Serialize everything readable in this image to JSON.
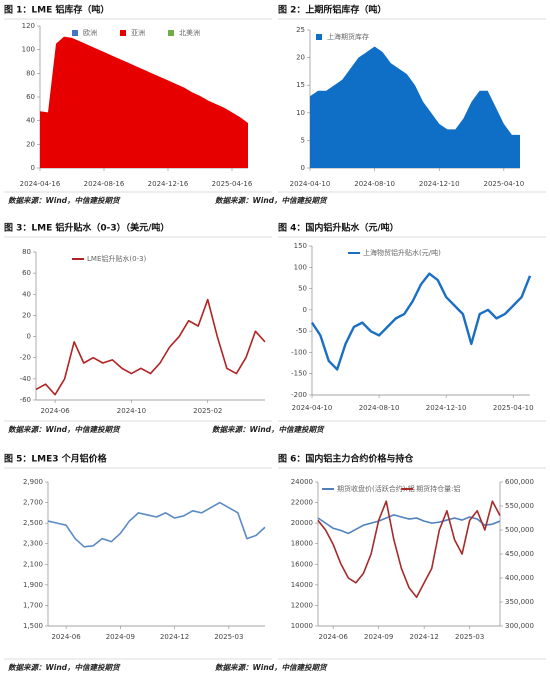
{
  "chart_data": [
    {
      "type": "area",
      "stacked": true,
      "title": "图 1：LME 铝库存（吨）",
      "source": "数据来源：Wind，中信建投期货",
      "categories": [
        "2024-04-16",
        null,
        null,
        null,
        null,
        null,
        null,
        null,
        "2024-08-16",
        null,
        null,
        null,
        null,
        null,
        null,
        null,
        "2024-12-16",
        null,
        null,
        null,
        null,
        null,
        null,
        null,
        "2025-04-16",
        null,
        null
      ],
      "series": [
        {
          "name": "欧洲",
          "color": "#4472c4",
          "values": [
            0,
            0,
            0,
            0,
            0,
            0,
            0,
            0,
            0,
            0,
            0,
            0,
            0,
            0,
            0,
            0,
            0,
            0,
            0,
            0,
            0,
            0,
            0,
            0,
            0,
            0,
            0
          ]
        },
        {
          "name": "亚洲",
          "color": "#e60000",
          "values": [
            48,
            47,
            105,
            111,
            110,
            107,
            104,
            101,
            98,
            95,
            92,
            89,
            86,
            83,
            80,
            77,
            74,
            71,
            68,
            64,
            61,
            57,
            54,
            51,
            47,
            43,
            38
          ]
        },
        {
          "name": "北美洲",
          "color": "#70ad47",
          "values": [
            0,
            0,
            0,
            0,
            0,
            0,
            0,
            0,
            0,
            0,
            0,
            0,
            0,
            0,
            0,
            0,
            0,
            0,
            0,
            0,
            0,
            0,
            0,
            0,
            0,
            0,
            0
          ]
        }
      ],
      "ylim": [
        0,
        120
      ],
      "yticks": [
        0,
        20,
        40,
        60,
        80,
        100,
        120
      ],
      "legend": "top"
    },
    {
      "type": "area",
      "stacked": true,
      "title": "图 2：上期所铝库存（吨）",
      "source": "数据来源：Wind，中信建投期货",
      "categories": [
        "2024-04-10",
        null,
        null,
        null,
        null,
        null,
        null,
        null,
        "2024-08-10",
        null,
        null,
        null,
        null,
        null,
        null,
        null,
        "2024-12-10",
        null,
        null,
        null,
        null,
        null,
        null,
        null,
        "2025-04-10",
        null,
        null
      ],
      "series": [
        {
          "name": "上海期货库存",
          "color": "#0f6fc6",
          "values": [
            13,
            14,
            14,
            15,
            16,
            18,
            20,
            21,
            22,
            21,
            19,
            18,
            17,
            15,
            12,
            10,
            8,
            7,
            7,
            9,
            12,
            14,
            14,
            11,
            8,
            6,
            6
          ]
        }
      ],
      "ylim": [
        0,
        25
      ],
      "yticks": [
        0,
        5,
        10,
        15,
        20,
        25
      ],
      "legend": "top-left"
    },
    {
      "type": "line",
      "title": "图 3：LME 铝升贴水（0-3）（美元/吨）",
      "source": "数据来源：Wind，中信建投期货",
      "categories": [
        null,
        null,
        "2024-06",
        null,
        null,
        null,
        null,
        null,
        null,
        null,
        "2024-10",
        null,
        null,
        null,
        null,
        null,
        null,
        null,
        "2025-02",
        null,
        null,
        null,
        null,
        null,
        null
      ],
      "series": [
        {
          "name": "LME铝升贴水(0-3)",
          "color": "#b22222",
          "values": [
            -50,
            -45,
            -55,
            -40,
            -5,
            -25,
            -20,
            -25,
            -22,
            -30,
            -35,
            -30,
            -35,
            -25,
            -10,
            0,
            15,
            10,
            35,
            0,
            -30,
            -35,
            -20,
            5,
            -5
          ]
        }
      ],
      "ylim": [
        -60,
        80
      ],
      "yticks": [
        -60,
        -40,
        -20,
        0,
        20,
        40,
        60,
        80
      ],
      "legend": "top"
    },
    {
      "type": "line",
      "title": "图 4：国内铝升贴水（元/吨）",
      "source": "数据来源：Wind，中信建投期货",
      "categories": [
        "2024-04-10",
        null,
        null,
        null,
        null,
        null,
        null,
        null,
        "2024-08-10",
        null,
        null,
        null,
        null,
        null,
        null,
        null,
        "2024-12-10",
        null,
        null,
        null,
        null,
        null,
        null,
        null,
        "2025-04-10",
        null,
        null
      ],
      "series": [
        {
          "name": "上海物贸铝升贴水(元/吨)",
          "color": "#1a6fc4",
          "values": [
            -30,
            -60,
            -120,
            -140,
            -80,
            -40,
            -30,
            -50,
            -60,
            -40,
            -20,
            -10,
            20,
            60,
            85,
            70,
            30,
            10,
            -10,
            -80,
            -10,
            0,
            -20,
            -10,
            10,
            30,
            80
          ]
        }
      ],
      "ylim": [
        -200,
        150
      ],
      "yticks": [
        -200,
        -150,
        -100,
        -50,
        0,
        50,
        100,
        150
      ],
      "legend": "top"
    },
    {
      "type": "line",
      "title": "图 5：LME3 个月铝价格",
      "source": "数据来源：Wind，中信建投期货",
      "categories": [
        null,
        null,
        "2024-06",
        null,
        null,
        null,
        null,
        null,
        "2024-09",
        null,
        null,
        null,
        null,
        null,
        "2024-12",
        null,
        null,
        null,
        null,
        null,
        "2025-03",
        null,
        null,
        null,
        null
      ],
      "series": [
        {
          "color": "#5b8ac6",
          "values": [
            2520,
            2500,
            2480,
            2350,
            2270,
            2280,
            2350,
            2320,
            2400,
            2520,
            2600,
            2580,
            2560,
            2600,
            2550,
            2570,
            2620,
            2600,
            2650,
            2700,
            2650,
            2600,
            2350,
            2380,
            2460
          ]
        }
      ],
      "ylim": [
        1500,
        2900
      ],
      "yticks": [
        {
          "value": 1500,
          "label": "1,500"
        },
        {
          "value": 1700,
          "label": "1,700"
        },
        {
          "value": 1900,
          "label": "1,900"
        },
        {
          "value": 2100,
          "label": "2,100"
        },
        {
          "value": 2300,
          "label": "2,300"
        },
        {
          "value": 2500,
          "label": "2,500"
        },
        {
          "value": 2700,
          "label": "2,700"
        },
        {
          "value": 2900,
          "label": "2,900"
        }
      ]
    },
    {
      "type": "line",
      "title": "图 6：国内铝主力合约价格与持仓",
      "source": "数据来源：Wind，中信建投期货",
      "categories": [
        null,
        null,
        "2024-06",
        null,
        null,
        null,
        null,
        null,
        "2024-09",
        null,
        null,
        null,
        null,
        null,
        "2024-12",
        null,
        null,
        null,
        null,
        null,
        "2025-03",
        null,
        null,
        null,
        null
      ],
      "series": [
        {
          "name": "期货收盘价(活跃合约):铝",
          "color": "#4f81bd",
          "values": [
            20500,
            20000,
            19500,
            19300,
            19000,
            19400,
            19800,
            20000,
            20200,
            20500,
            20800,
            20600,
            20400,
            20500,
            20200,
            20000,
            20100,
            20300,
            20500,
            20300,
            20600,
            20400,
            19800,
            19900,
            20200
          ]
        },
        {
          "name": "期货持仓量:铝",
          "color": "#a52a2a",
          "axis": "y2",
          "values": [
            520000,
            500000,
            470000,
            430000,
            400000,
            390000,
            410000,
            450000,
            520000,
            560000,
            480000,
            420000,
            380000,
            360000,
            390000,
            420000,
            500000,
            540000,
            480000,
            450000,
            520000,
            540000,
            500000,
            560000,
            530000
          ]
        }
      ],
      "ylim": [
        10000,
        24000
      ],
      "yticks": [
        10000,
        12000,
        14000,
        16000,
        18000,
        20000,
        22000,
        24000
      ],
      "y2lim": [
        300000,
        600000
      ],
      "y2ticks": [
        {
          "value": 300000,
          "label": "300,000"
        },
        {
          "value": 350000,
          "label": "350,000"
        },
        {
          "value": 400000,
          "label": "400,000"
        },
        {
          "value": 450000,
          "label": "450,000"
        },
        {
          "value": 500000,
          "label": "500,000"
        },
        {
          "value": 550000,
          "label": "550,000"
        },
        {
          "value": 600000,
          "label": "600,000"
        }
      ],
      "legend": "top"
    }
  ]
}
